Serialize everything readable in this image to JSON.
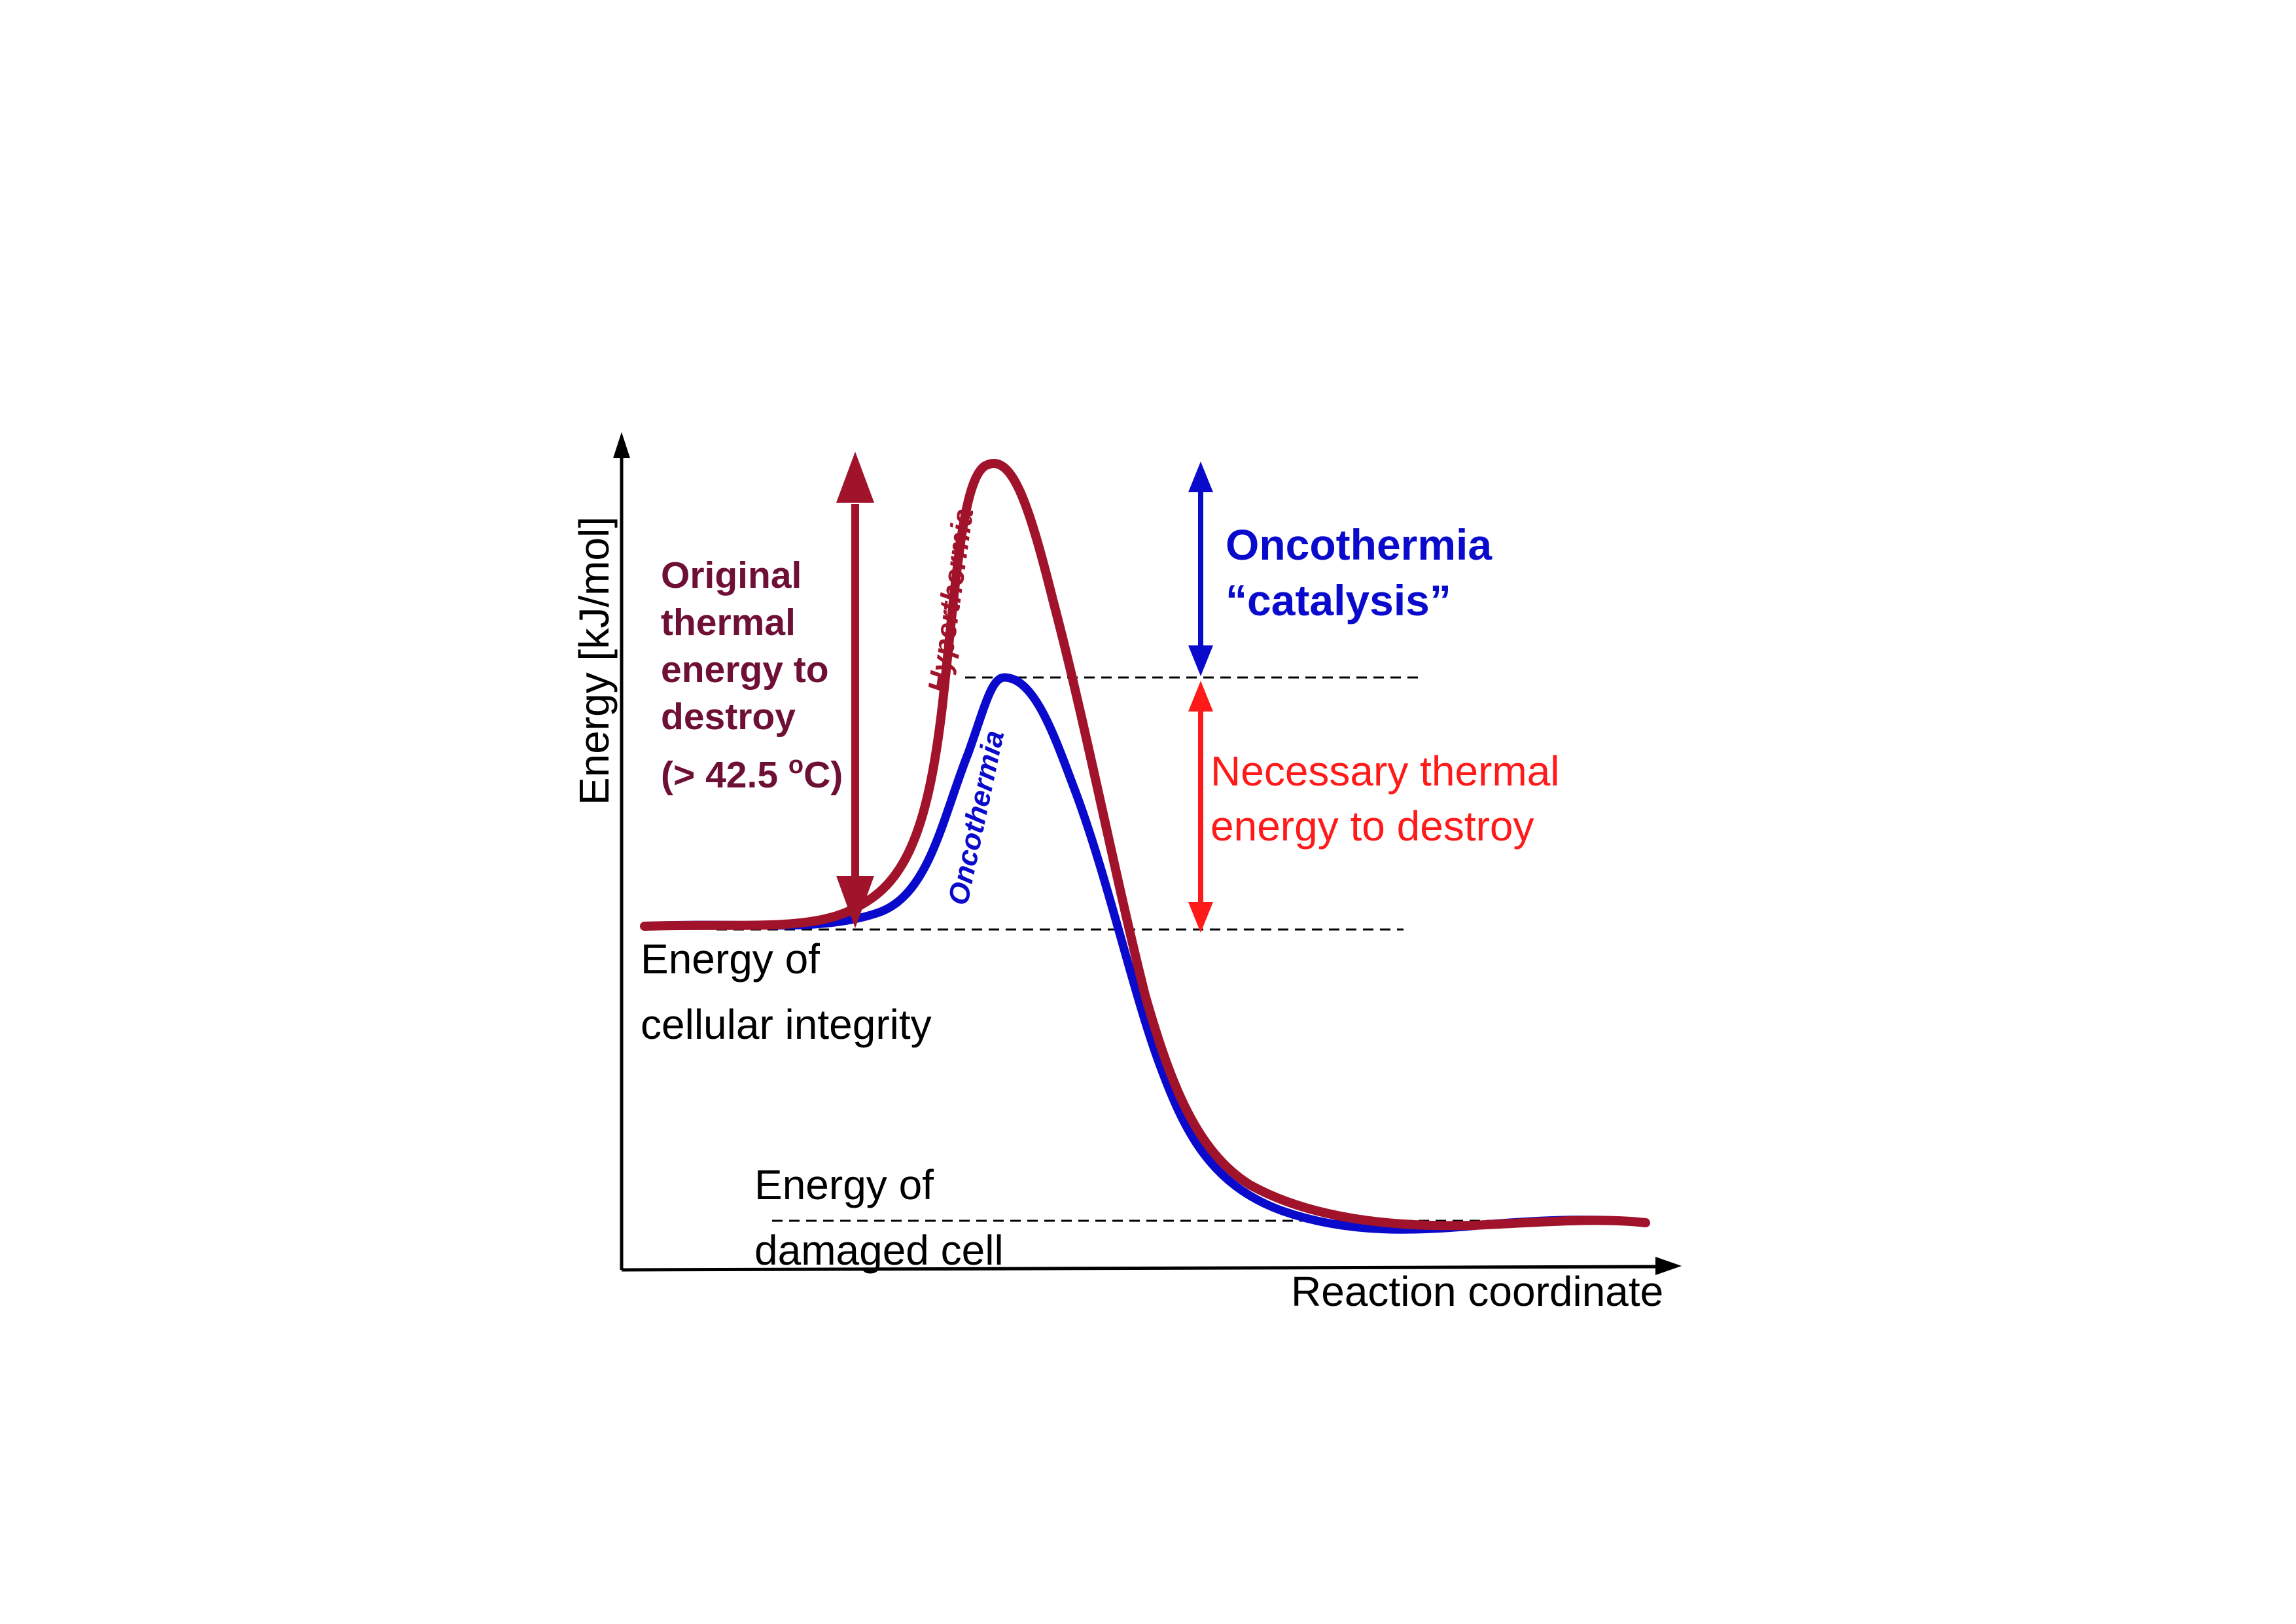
{
  "axes": {
    "y_label": "Energy [kJ/mol]",
    "x_label": "Reaction coordinate"
  },
  "curves": {
    "hyperthermia_label": "Hyperthermia",
    "oncothermia_label": "Oncothermia"
  },
  "levels": {
    "integrity_line1": "Energy of",
    "integrity_line2": "cellular integrity",
    "damaged_line1": "Energy of",
    "damaged_line2": "damaged cell"
  },
  "annotations": {
    "original_lines": [
      "Original",
      "thermal",
      "energy to",
      "destroy"
    ],
    "original_temp_prefix": "(> 42.5 ",
    "original_temp_degree": "o",
    "original_temp_suffix": "C)",
    "catalysis_line1": "Oncothermia",
    "catalysis_line2": "“catalysis”",
    "necessary_line1": "Necessary thermal",
    "necessary_line2": "energy to destroy"
  },
  "colors": {
    "hyperthermia": "#a0132b",
    "oncothermia": "#0a0acc",
    "original_text": "#6e1035",
    "necessary": "#ff1a1a",
    "axis": "#000000"
  }
}
